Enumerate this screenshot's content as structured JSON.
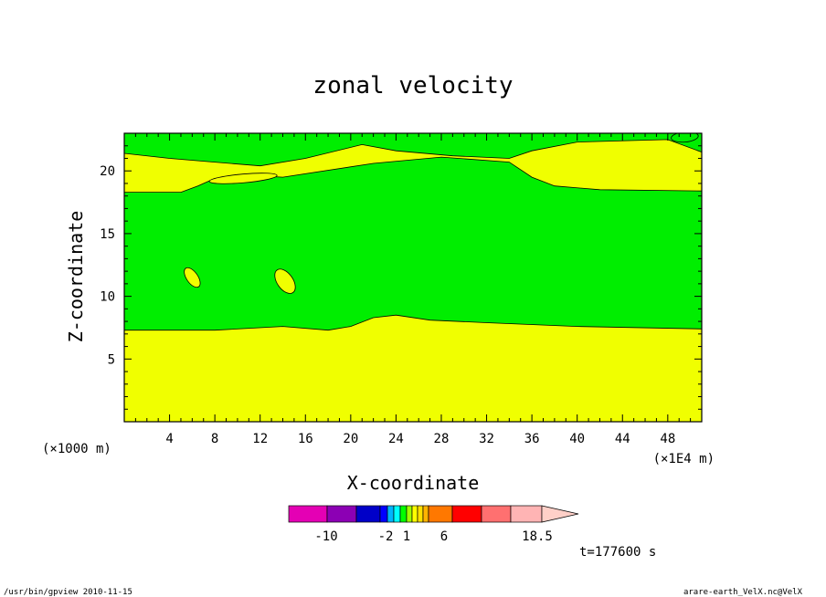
{
  "chart_data": {
    "type": "heatmap",
    "title": "zonal velocity",
    "xlabel": "X-coordinate",
    "ylabel": "Z-coordinate",
    "x_unit": "(×1000 m)",
    "x_scale_note": "(×1E4 m)",
    "xlim": [
      0,
      51
    ],
    "ylim": [
      0,
      23
    ],
    "x_ticks": [
      "4",
      "8",
      "12",
      "16",
      "20",
      "24",
      "28",
      "32",
      "36",
      "40",
      "44",
      "48"
    ],
    "y_ticks": [
      "5",
      "10",
      "15",
      "20"
    ],
    "colors": {
      "low_band": "#f0ff00",
      "high_band": "#00ee00",
      "line": "#000000"
    },
    "regions": [
      {
        "name": "lower-layer",
        "color": "#f0ff00",
        "top_boundary": [
          [
            0,
            7.3
          ],
          [
            8,
            7.3
          ],
          [
            14,
            7.6
          ],
          [
            18,
            7.3
          ],
          [
            20,
            7.6
          ],
          [
            22,
            8.3
          ],
          [
            24,
            8.5
          ],
          [
            27,
            8.1
          ],
          [
            32,
            7.9
          ],
          [
            40,
            7.6
          ],
          [
            51,
            7.4
          ]
        ]
      },
      {
        "name": "middle-layer",
        "color": "#00ee00",
        "top_boundary": [
          [
            0,
            18.3
          ],
          [
            5,
            18.3
          ],
          [
            6.5,
            18.8
          ],
          [
            8,
            19.4
          ],
          [
            10,
            19.7
          ],
          [
            14,
            19.5
          ],
          [
            22,
            20.6
          ],
          [
            28,
            21.1
          ],
          [
            34,
            20.7
          ],
          [
            36,
            19.5
          ],
          [
            38,
            18.8
          ],
          [
            42,
            18.5
          ],
          [
            51,
            18.4
          ]
        ]
      },
      {
        "name": "upper-band",
        "color": "#f0ff00",
        "top_boundary": [
          [
            0,
            21.4
          ],
          [
            4,
            21
          ],
          [
            8,
            20.7
          ],
          [
            12,
            20.4
          ],
          [
            16,
            21
          ],
          [
            21,
            22.1
          ],
          [
            24,
            21.6
          ],
          [
            29,
            21.2
          ],
          [
            34,
            21
          ],
          [
            36,
            21.6
          ],
          [
            40,
            22.3
          ],
          [
            48,
            22.5
          ],
          [
            51,
            21.5
          ]
        ]
      }
    ],
    "islands": [
      {
        "color": "#f0ff00",
        "center": [
          6,
          11.5
        ],
        "size": [
          0.5,
          0.9
        ]
      },
      {
        "color": "#f0ff00",
        "center": [
          14.2,
          11.2
        ],
        "size": [
          0.7,
          1.1
        ]
      },
      {
        "color": "#f0ff00",
        "center": [
          10.5,
          19.4
        ],
        "size": [
          3,
          0.35
        ]
      },
      {
        "color": "#00ee00",
        "center": [
          49.5,
          22.7
        ],
        "size": [
          1.2,
          0.4
        ]
      }
    ],
    "colorbar": {
      "labels": [
        "-10",
        "-2",
        "1",
        "6",
        "18.5"
      ],
      "colors": [
        "#e400b4",
        "#8c00b4",
        "#0000c8",
        "#0000ff",
        "#00b4ff",
        "#00ffff",
        "#00ff00",
        "#a0ff00",
        "#ffff00",
        "#ffe000",
        "#ffb400",
        "#ff7800",
        "#ff0000",
        "#ff7070",
        "#ffb4b4",
        "#ffd0c8"
      ]
    },
    "time_label": "t=177600 s"
  },
  "footer": {
    "left": "/usr/bin/gpview  2010-11-15",
    "right": "arare-earth_VelX.nc@VelX"
  }
}
